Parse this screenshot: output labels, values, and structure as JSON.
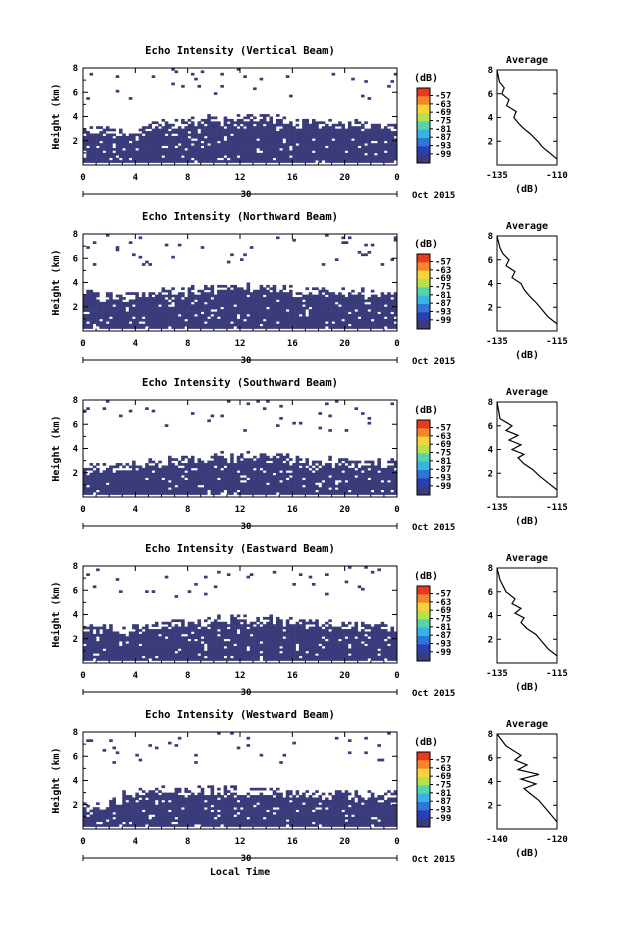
{
  "figure": {
    "xlabel": "Local Time",
    "date_label": "Oct 2015",
    "day_label": "30",
    "colorbar_unit": "(dB)",
    "colorbar_ticks": [
      "-57",
      "-63",
      "-69",
      "-75",
      "-81",
      "-87",
      "-93",
      "-99"
    ],
    "colorbar_colors": [
      "#E73A21",
      "#F5852A",
      "#F6D43A",
      "#B6E34A",
      "#56D3A8",
      "#37B3E6",
      "#2F77D6",
      "#2A3FB3",
      "#3A3B7A"
    ],
    "no_data_color": "#3A3B7A"
  },
  "chart_data": [
    {
      "type": "heatmap",
      "title": "Echo Intensity (Vertical Beam)",
      "xlabel": "",
      "ylabel": "Height (km)",
      "xlim": [
        0,
        24
      ],
      "ylim": [
        0,
        8
      ],
      "xticks": [
        "0",
        "4",
        "8",
        "12",
        "16",
        "20",
        "0"
      ],
      "yticks": [
        "2",
        "4",
        "6",
        "8"
      ],
      "echo_top_km": [
        2.7,
        2.6,
        2.6,
        2.7,
        2.8,
        2.9,
        3.1,
        3.3,
        3.4,
        3.5,
        3.6,
        3.6,
        3.6,
        3.6,
        3.5,
        3.4,
        3.3,
        3.3,
        3.2,
        3.1,
        3.1,
        3.0,
        3.0,
        3.0
      ],
      "profile": {
        "title": "Average",
        "xlabel": "(dB)",
        "ylim": [
          0,
          8
        ],
        "xlim": [
          -135,
          -110
        ],
        "xticks": [
          "-135",
          "-110"
        ],
        "yticks": [
          "2",
          "4",
          "6",
          "8"
        ],
        "points": [
          [
            -110,
            0.5
          ],
          [
            -113,
            1.0
          ],
          [
            -116,
            1.5
          ],
          [
            -118,
            2.0
          ],
          [
            -121,
            2.6
          ],
          [
            -124,
            3.1
          ],
          [
            -126,
            3.5
          ],
          [
            -128,
            4.0
          ],
          [
            -127,
            4.5
          ],
          [
            -131,
            5.0
          ],
          [
            -130,
            5.5
          ],
          [
            -133,
            6.0
          ],
          [
            -132,
            6.5
          ],
          [
            -134,
            7.0
          ],
          [
            -135,
            8.0
          ]
        ]
      }
    },
    {
      "type": "heatmap",
      "title": "Echo Intensity (Northward Beam)",
      "xlabel": "",
      "ylabel": "Height (km)",
      "xlim": [
        0,
        24
      ],
      "ylim": [
        0,
        8
      ],
      "xticks": [
        "0",
        "4",
        "8",
        "12",
        "16",
        "20",
        "0"
      ],
      "yticks": [
        "2",
        "4",
        "6",
        "8"
      ],
      "echo_top_km": [
        2.8,
        2.7,
        2.6,
        2.7,
        2.8,
        2.9,
        3.0,
        3.1,
        3.2,
        3.3,
        3.3,
        3.4,
        3.4,
        3.4,
        3.3,
        3.2,
        3.1,
        3.0,
        3.0,
        2.9,
        2.9,
        2.9,
        2.9,
        2.9
      ],
      "profile": {
        "title": "Average",
        "xlabel": "(dB)",
        "ylim": [
          0,
          8
        ],
        "xlim": [
          -135,
          -115
        ],
        "xticks": [
          "-135",
          "-115"
        ],
        "yticks": [
          "2",
          "4",
          "6",
          "8"
        ],
        "points": [
          [
            -115,
            0.6
          ],
          [
            -118,
            1.2
          ],
          [
            -120,
            1.8
          ],
          [
            -122,
            2.4
          ],
          [
            -124,
            2.9
          ],
          [
            -126,
            3.5
          ],
          [
            -127,
            4.0
          ],
          [
            -130,
            4.5
          ],
          [
            -129,
            5.0
          ],
          [
            -132,
            5.5
          ],
          [
            -131,
            6.0
          ],
          [
            -133,
            6.5
          ],
          [
            -134,
            7.0
          ],
          [
            -135,
            8.0
          ]
        ]
      }
    },
    {
      "type": "heatmap",
      "title": "Echo Intensity (Southward Beam)",
      "xlabel": "",
      "ylabel": "Height (km)",
      "xlim": [
        0,
        24
      ],
      "ylim": [
        0,
        8
      ],
      "xticks": [
        "0",
        "4",
        "8",
        "12",
        "16",
        "20",
        "0"
      ],
      "yticks": [
        "2",
        "4",
        "6",
        "8"
      ],
      "echo_top_km": [
        2.2,
        2.2,
        2.3,
        2.4,
        2.5,
        2.6,
        2.7,
        2.8,
        2.9,
        3.0,
        3.1,
        3.1,
        3.2,
        3.1,
        3.0,
        2.9,
        2.8,
        2.7,
        2.7,
        2.6,
        2.6,
        2.6,
        2.6,
        2.6
      ],
      "profile": {
        "title": "Average",
        "xlabel": "(dB)",
        "ylim": [
          0,
          8
        ],
        "xlim": [
          -135,
          -115
        ],
        "xticks": [
          "-135",
          "-115"
        ],
        "yticks": [
          "2",
          "4",
          "6",
          "8"
        ],
        "points": [
          [
            -115,
            0.6
          ],
          [
            -118,
            1.2
          ],
          [
            -121,
            1.8
          ],
          [
            -123,
            2.3
          ],
          [
            -126,
            2.8
          ],
          [
            -128,
            3.3
          ],
          [
            -126,
            3.6
          ],
          [
            -130,
            4.0
          ],
          [
            -127,
            4.4
          ],
          [
            -131,
            4.8
          ],
          [
            -128,
            5.2
          ],
          [
            -132,
            5.6
          ],
          [
            -130,
            6.0
          ],
          [
            -134,
            6.6
          ],
          [
            -135,
            8.0
          ]
        ]
      }
    },
    {
      "type": "heatmap",
      "title": "Echo Intensity (Eastward Beam)",
      "xlabel": "",
      "ylabel": "Height (km)",
      "xlim": [
        0,
        24
      ],
      "ylim": [
        0,
        8
      ],
      "xticks": [
        "0",
        "4",
        "8",
        "12",
        "16",
        "20",
        "0"
      ],
      "yticks": [
        "2",
        "4",
        "6",
        "8"
      ],
      "echo_top_km": [
        2.7,
        2.6,
        2.5,
        2.6,
        2.7,
        2.8,
        3.0,
        3.1,
        3.2,
        3.3,
        3.4,
        3.4,
        3.4,
        3.4,
        3.3,
        3.2,
        3.1,
        3.0,
        2.9,
        2.9,
        2.9,
        2.8,
        2.8,
        2.8
      ],
      "profile": {
        "title": "Average",
        "xlabel": "(dB)",
        "ylim": [
          0,
          8
        ],
        "xlim": [
          -135,
          -115
        ],
        "xticks": [
          "-135",
          "-115"
        ],
        "yticks": [
          "2",
          "4",
          "6",
          "8"
        ],
        "points": [
          [
            -115,
            0.6
          ],
          [
            -118,
            1.2
          ],
          [
            -120,
            1.8
          ],
          [
            -122,
            2.4
          ],
          [
            -125,
            2.9
          ],
          [
            -127,
            3.4
          ],
          [
            -126,
            3.8
          ],
          [
            -129,
            4.2
          ],
          [
            -127,
            4.6
          ],
          [
            -130,
            5.0
          ],
          [
            -129,
            5.4
          ],
          [
            -132,
            6.0
          ],
          [
            -134,
            7.0
          ],
          [
            -135,
            8.0
          ]
        ]
      }
    },
    {
      "type": "heatmap",
      "title": "Echo Intensity (Westward Beam)",
      "xlabel": "Local Time",
      "ylabel": "Height (km)",
      "xlim": [
        0,
        24
      ],
      "ylim": [
        0,
        8
      ],
      "xticks": [
        "0",
        "4",
        "8",
        "12",
        "16",
        "20",
        "0"
      ],
      "yticks": [
        "2",
        "4",
        "6",
        "8"
      ],
      "echo_top_km": [
        1.5,
        1.8,
        2.2,
        2.5,
        2.7,
        2.8,
        2.9,
        3.0,
        3.0,
        3.0,
        3.0,
        3.0,
        2.9,
        2.9,
        2.8,
        2.8,
        2.7,
        2.7,
        2.6,
        2.6,
        2.6,
        2.6,
        2.6,
        2.6
      ],
      "profile": {
        "title": "Average",
        "xlabel": "(dB)",
        "ylim": [
          0,
          8
        ],
        "xlim": [
          -140,
          -120
        ],
        "xticks": [
          "-140",
          "-120"
        ],
        "yticks": [
          "2",
          "4",
          "6",
          "8"
        ],
        "points": [
          [
            -120,
            0.6
          ],
          [
            -122,
            1.2
          ],
          [
            -124,
            1.8
          ],
          [
            -126,
            2.4
          ],
          [
            -129,
            3.0
          ],
          [
            -131,
            3.4
          ],
          [
            -127,
            3.8
          ],
          [
            -132,
            4.2
          ],
          [
            -126,
            4.6
          ],
          [
            -133,
            5.0
          ],
          [
            -130,
            5.4
          ],
          [
            -134,
            5.8
          ],
          [
            -132,
            6.2
          ],
          [
            -137,
            7.0
          ],
          [
            -140,
            8.0
          ]
        ]
      }
    }
  ]
}
